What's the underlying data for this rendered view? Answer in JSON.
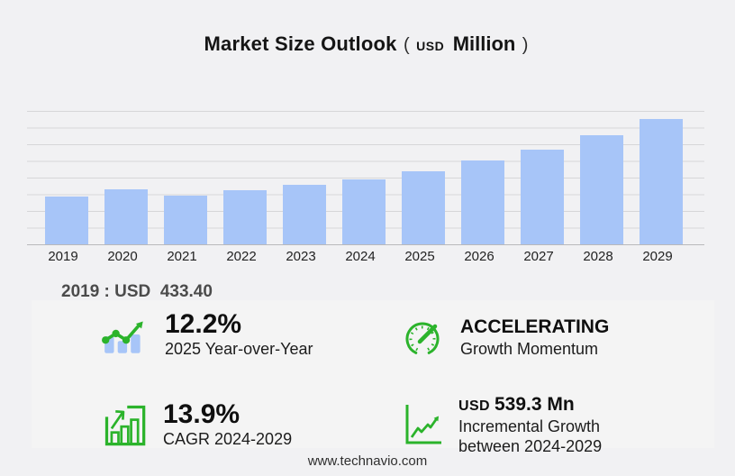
{
  "title": {
    "main": "Market Size Outlook",
    "paren_open": "(",
    "unit_small": "USD",
    "unit_big": "Million",
    "paren_close": ")"
  },
  "chart_data": {
    "type": "bar",
    "title": "Market Size Outlook (USD Million)",
    "categories": [
      "2019",
      "2020",
      "2021",
      "2022",
      "2023",
      "2024",
      "2025",
      "2026",
      "2027",
      "2028",
      "2029"
    ],
    "values": [
      433.4,
      492,
      440,
      487,
      535,
      588.1,
      659.9,
      752,
      855,
      978,
      1127.4
    ],
    "xlabel": "",
    "ylabel": "",
    "ylim": [
      0,
      1200
    ],
    "gridline_step": 150,
    "grid_on": true,
    "legend": "none",
    "bar_color": "#a7c5f8"
  },
  "note": "2019 : USD  433.40",
  "stats": [
    {
      "icon": "bar-chart-trend-icon",
      "value": "12.2%",
      "label_lines": [
        "2025 Year-over-Year"
      ]
    },
    {
      "icon": "speedometer-icon",
      "value": "ACCELERATING",
      "label_lines": [
        "Growth Momentum"
      ]
    },
    {
      "icon": "chart-growth-box-icon",
      "value": "13.9%",
      "label_lines": [
        "CAGR 2024-2029"
      ]
    },
    {
      "icon": "axes-growth-icon",
      "value_prefix": "USD",
      "value": "539.3 Mn",
      "label_lines": [
        "Incremental Growth",
        "between 2024-2029"
      ]
    }
  ],
  "footer": {
    "url": "www.technavio.com"
  },
  "colors": {
    "background": "#f1f1f3",
    "panel": "#f4f4f4",
    "bar": "#a7c5f8",
    "accent_green": "#2bb32b",
    "gridline": "#d6d6d8",
    "baseline": "#b9b9bb"
  }
}
